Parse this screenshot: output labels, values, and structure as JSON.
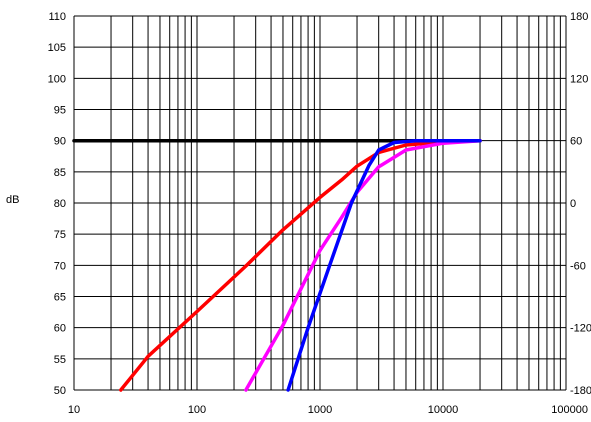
{
  "chart_data": {
    "type": "line",
    "x_scale": "log",
    "xlim": [
      10,
      100000
    ],
    "ylim": [
      50,
      110
    ],
    "y2lim": [
      -180,
      180
    ],
    "grid": true,
    "xlabel": "",
    "ylabel": "dB",
    "x_ticks": [
      "10",
      "100",
      "1000",
      "10000",
      "100000"
    ],
    "y_ticks": [
      "50",
      "55",
      "60",
      "65",
      "70",
      "75",
      "80",
      "85",
      "90",
      "95",
      "100",
      "105",
      "110"
    ],
    "y2_ticks": [
      "-180",
      "-120",
      "-60",
      "0",
      "60",
      "120",
      "180"
    ],
    "series": [
      {
        "color": "#000000",
        "points": [
          [
            10,
            90
          ],
          [
            20000,
            90
          ]
        ]
      },
      {
        "color": "#ff0000",
        "points": [
          [
            24,
            50
          ],
          [
            40,
            55.4
          ],
          [
            100,
            62.6
          ],
          [
            250,
            69.9
          ],
          [
            500,
            75.7
          ],
          [
            1000,
            80.9
          ],
          [
            1500,
            83.7
          ],
          [
            2000,
            85.9
          ],
          [
            3000,
            88.1
          ],
          [
            5000,
            89.3
          ],
          [
            10000,
            89.8
          ],
          [
            20000,
            90
          ]
        ]
      },
      {
        "color": "#ff00ff",
        "points": [
          [
            250,
            50
          ],
          [
            500,
            60.4
          ],
          [
            1000,
            72.4
          ],
          [
            1500,
            77.7
          ],
          [
            2000,
            81.7
          ],
          [
            3000,
            85.8
          ],
          [
            5000,
            88.5
          ],
          [
            10000,
            89.6
          ],
          [
            20000,
            90
          ]
        ]
      },
      {
        "color": "#0000ff",
        "points": [
          [
            550,
            50
          ],
          [
            800,
            60
          ],
          [
            1200,
            70
          ],
          [
            1800,
            80
          ],
          [
            2500,
            86
          ],
          [
            3000,
            88.5
          ],
          [
            4000,
            89.7
          ],
          [
            6000,
            90
          ],
          [
            20000,
            90
          ]
        ]
      }
    ]
  }
}
